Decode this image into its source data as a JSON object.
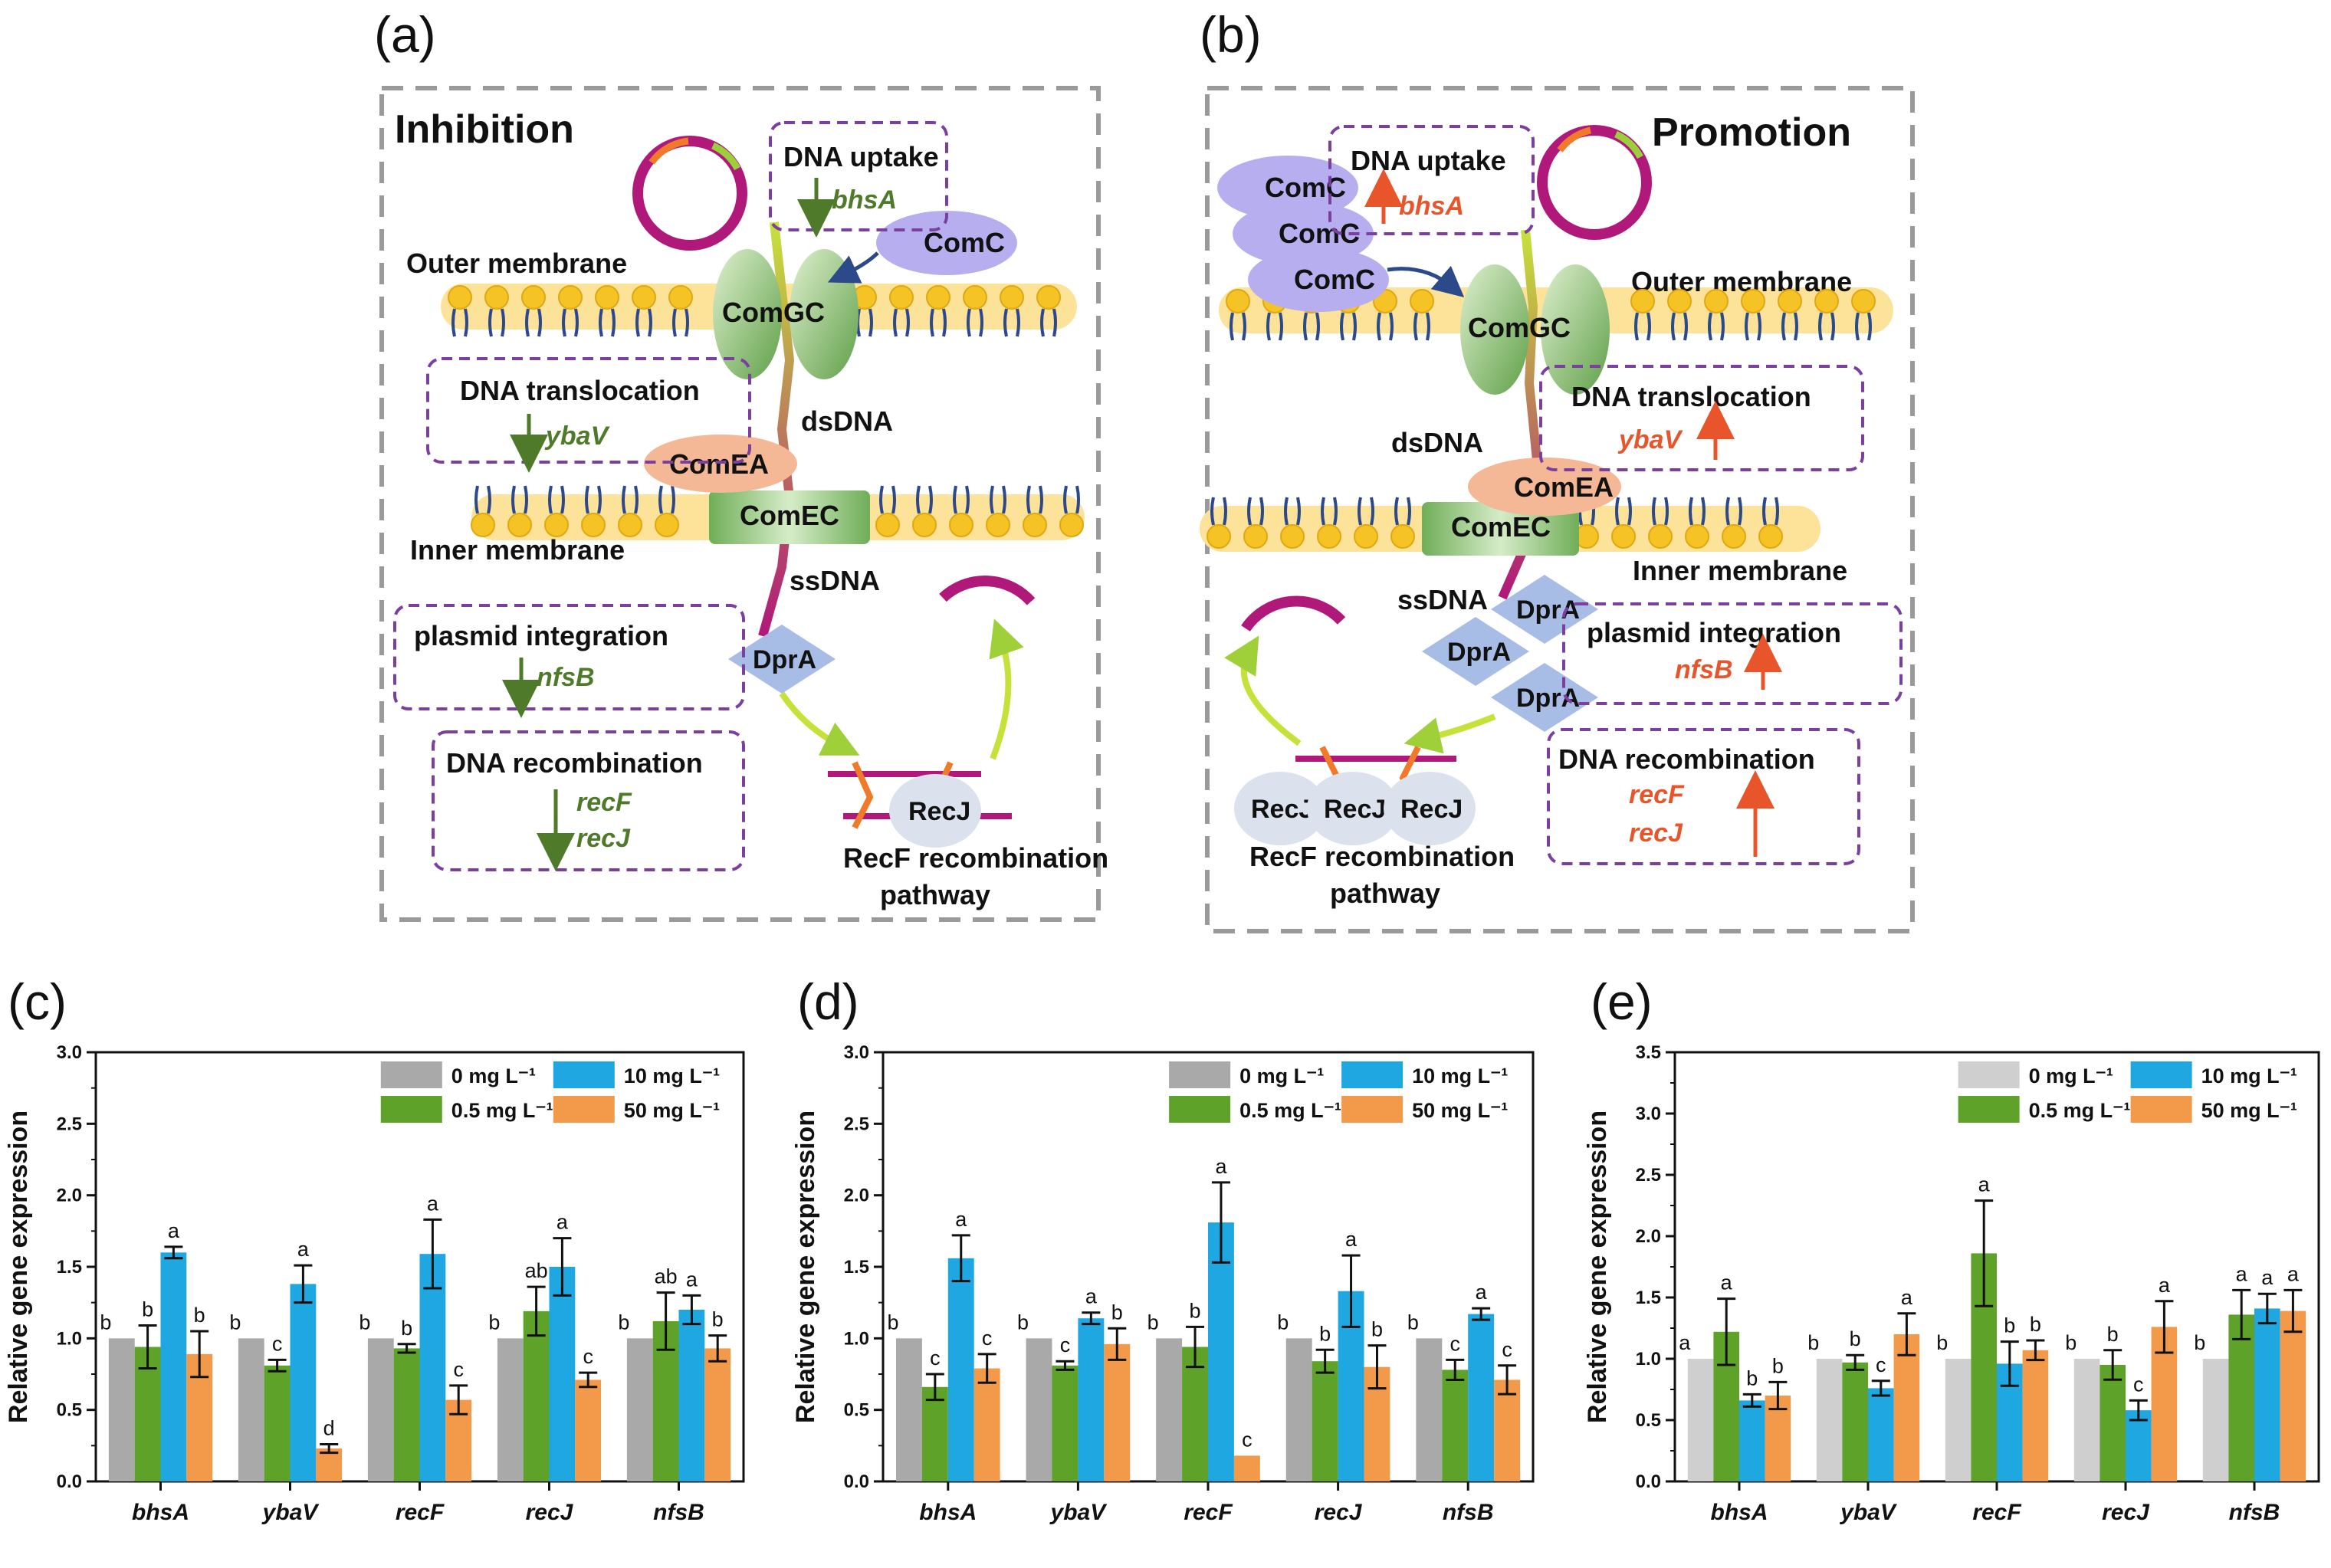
{
  "diagram_a": {
    "panel_label": "(a)",
    "title": "Inhibition",
    "outer_membrane": "Outer membrane",
    "inner_membrane": "Inner membrane",
    "dsDNA": "dsDNA",
    "ssDNA": "ssDNA",
    "comC": "ComC",
    "comGC": "ComGC",
    "comEA": "ComEA",
    "comEC": "ComEC",
    "dprA": "DprA",
    "recJ": "RecJ",
    "pathway_line1": "RecF recombination",
    "pathway_line2": "pathway",
    "box_uptake": "DNA uptake",
    "gene_bhsA": "bhsA",
    "box_translocation": "DNA translocation",
    "gene_ybaV": "ybaV",
    "box_plasmid": "plasmid  integration",
    "gene_nfsB": "nfsB",
    "box_recomb": "DNA recombination",
    "gene_recF": "recF",
    "gene_recJ": "recJ",
    "arrow_color": "#4e7a2a"
  },
  "diagram_b": {
    "panel_label": "(b)",
    "title": "Promotion",
    "outer_membrane": "Outer membrane",
    "inner_membrane": "Inner membrane",
    "dsDNA": "dsDNA",
    "ssDNA": "ssDNA",
    "comC": "ComC",
    "comGC": "ComGC",
    "comEA": "ComEA",
    "comEC": "ComEC",
    "dprA": "DprA",
    "recJ": "RecJ",
    "pathway_line1": "RecF recombination",
    "pathway_line2": "pathway",
    "box_uptake": "DNA uptake",
    "gene_bhsA": "bhsA",
    "box_translocation": "DNA translocation",
    "gene_ybaV": "ybaV",
    "box_plasmid": "plasmid  integration",
    "gene_nfsB": "nfsB",
    "box_recomb": "DNA recombination",
    "gene_recF": "recF",
    "gene_recJ": "recJ",
    "arrow_color": "#e8552a"
  },
  "colors": {
    "gray": "#a9a9a9",
    "light_gray": "#cfcfcf",
    "green": "#5fa22a",
    "blue": "#1ea7e1",
    "orange": "#f39a4a",
    "purple_dash": "#7b3fa0",
    "magenta": "#b0187a",
    "membrane": "#fde29a",
    "lipid_head": "#f5c325",
    "lipid_tail": "#2c4a8a",
    "protein_purple": "#b7aef0",
    "protein_blue": "#a8bde6",
    "protein_salmon": "#f4b896",
    "protein_green": "#8ec27a"
  },
  "chart_data": [
    {
      "panel_label": "(c)",
      "type": "bar",
      "ylabel": "Relative gene expression",
      "ylim": [
        0,
        3.0
      ],
      "yticks": [
        "0.0",
        "0.5",
        "1.0",
        "1.5",
        "2.0",
        "2.5",
        "3.0"
      ],
      "categories": [
        "bhsA",
        "ybaV",
        "recF",
        "recJ",
        "nfsB"
      ],
      "legend": {
        "placement": "top-right",
        "labels": [
          "0 mg L⁻¹",
          "10 mg L⁻¹",
          "0.5 mg L⁻¹",
          "50 mg L⁻¹"
        ]
      },
      "series": [
        {
          "name": "0 mg L⁻¹",
          "color": "#a9a9a9",
          "values": [
            1.0,
            1.0,
            1.0,
            1.0,
            1.0
          ],
          "errors": [
            0,
            0,
            0,
            0,
            0
          ],
          "letters": [
            "b",
            "b",
            "b",
            "b",
            "b"
          ]
        },
        {
          "name": "0.5 mg L⁻¹",
          "color": "#5fa22a",
          "values": [
            0.94,
            0.81,
            0.93,
            1.19,
            1.12
          ],
          "errors": [
            0.15,
            0.04,
            0.03,
            0.17,
            0.2
          ],
          "letters": [
            "b",
            "c",
            "b",
            "ab",
            "ab"
          ]
        },
        {
          "name": "10 mg L⁻¹",
          "color": "#1ea7e1",
          "values": [
            1.6,
            1.38,
            1.59,
            1.5,
            1.2
          ],
          "errors": [
            0.04,
            0.13,
            0.24,
            0.2,
            0.1
          ],
          "letters": [
            "a",
            "a",
            "a",
            "a",
            "a"
          ]
        },
        {
          "name": "50 mg L⁻¹",
          "color": "#f39a4a",
          "values": [
            0.89,
            0.23,
            0.57,
            0.71,
            0.93
          ],
          "errors": [
            0.16,
            0.03,
            0.1,
            0.05,
            0.09
          ],
          "letters": [
            "b",
            "d",
            "c",
            "c",
            "b"
          ]
        }
      ]
    },
    {
      "panel_label": "(d)",
      "type": "bar",
      "ylabel": "Relative gene expression",
      "ylim": [
        0,
        3.0
      ],
      "yticks": [
        "0.0",
        "0.5",
        "1.0",
        "1.5",
        "2.0",
        "2.5",
        "3.0"
      ],
      "categories": [
        "bhsA",
        "ybaV",
        "recF",
        "recJ",
        "nfsB"
      ],
      "legend": {
        "placement": "top-right",
        "labels": [
          "0 mg L⁻¹",
          "10 mg L⁻¹",
          "0.5 mg L⁻¹",
          "50 mg L⁻¹"
        ]
      },
      "series": [
        {
          "name": "0 mg L⁻¹",
          "color": "#a9a9a9",
          "values": [
            1.0,
            1.0,
            1.0,
            1.0,
            1.0
          ],
          "errors": [
            0,
            0,
            0,
            0,
            0
          ],
          "letters": [
            "b",
            "b",
            "b",
            "b",
            "b"
          ]
        },
        {
          "name": "0.5 mg L⁻¹",
          "color": "#5fa22a",
          "values": [
            0.66,
            0.81,
            0.94,
            0.84,
            0.78
          ],
          "errors": [
            0.09,
            0.03,
            0.14,
            0.08,
            0.07
          ],
          "letters": [
            "c",
            "c",
            "b",
            "b",
            "c"
          ]
        },
        {
          "name": "10 mg L⁻¹",
          "color": "#1ea7e1",
          "values": [
            1.56,
            1.14,
            1.81,
            1.33,
            1.17
          ],
          "errors": [
            0.16,
            0.04,
            0.28,
            0.25,
            0.04
          ],
          "letters": [
            "a",
            "a",
            "a",
            "a",
            "a"
          ]
        },
        {
          "name": "50 mg L⁻¹",
          "color": "#f39a4a",
          "values": [
            0.79,
            0.96,
            0.18,
            0.8,
            0.71
          ],
          "errors": [
            0.1,
            0.11,
            0.0,
            0.15,
            0.1
          ],
          "letters": [
            "c",
            "b",
            "c",
            "b",
            "c"
          ]
        }
      ]
    },
    {
      "panel_label": "(e)",
      "type": "bar",
      "ylabel": "Relative gene expression",
      "ylim": [
        0,
        3.5
      ],
      "yticks": [
        "0.0",
        "0.5",
        "1.0",
        "1.5",
        "2.0",
        "2.5",
        "3.0",
        "3.5"
      ],
      "categories": [
        "bhsA",
        "ybaV",
        "recF",
        "recJ",
        "nfsB"
      ],
      "legend": {
        "placement": "top-right",
        "labels": [
          "0 mg L⁻¹",
          "10 mg L⁻¹",
          "0.5 mg L⁻¹",
          "50 mg L⁻¹"
        ]
      },
      "series": [
        {
          "name": "0 mg L⁻¹",
          "color": "#cfcfcf",
          "values": [
            1.0,
            1.0,
            1.0,
            1.0,
            1.0
          ],
          "errors": [
            0,
            0,
            0,
            0,
            0
          ],
          "letters": [
            "a",
            "b",
            "b",
            "b",
            "b"
          ]
        },
        {
          "name": "0.5 mg L⁻¹",
          "color": "#5fa22a",
          "values": [
            1.22,
            0.97,
            1.86,
            0.95,
            1.36
          ],
          "errors": [
            0.27,
            0.06,
            0.43,
            0.12,
            0.2
          ],
          "letters": [
            "a",
            "b",
            "a",
            "b",
            "a"
          ]
        },
        {
          "name": "10 mg L⁻¹",
          "color": "#1ea7e1",
          "values": [
            0.66,
            0.76,
            0.96,
            0.58,
            1.41
          ],
          "errors": [
            0.05,
            0.06,
            0.18,
            0.08,
            0.12
          ],
          "letters": [
            "b",
            "c",
            "b",
            "c",
            "a"
          ]
        },
        {
          "name": "50 mg L⁻¹",
          "color": "#f39a4a",
          "values": [
            0.7,
            1.2,
            1.07,
            1.26,
            1.39
          ],
          "errors": [
            0.11,
            0.17,
            0.08,
            0.21,
            0.17
          ],
          "letters": [
            "b",
            "a",
            "b",
            "a",
            "a"
          ]
        }
      ]
    }
  ]
}
